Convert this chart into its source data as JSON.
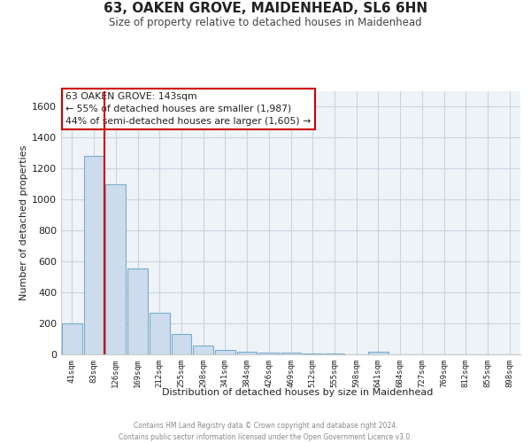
{
  "title": "63, OAKEN GROVE, MAIDENHEAD, SL6 6HN",
  "subtitle": "Size of property relative to detached houses in Maidenhead",
  "xlabel": "Distribution of detached houses by size in Maidenhead",
  "ylabel": "Number of detached properties",
  "bar_color": "#ccdcec",
  "bar_edge_color": "#7aaccc",
  "bins": [
    "41sqm",
    "83sqm",
    "126sqm",
    "169sqm",
    "212sqm",
    "255sqm",
    "298sqm",
    "341sqm",
    "384sqm",
    "426sqm",
    "469sqm",
    "512sqm",
    "555sqm",
    "598sqm",
    "641sqm",
    "684sqm",
    "727sqm",
    "769sqm",
    "812sqm",
    "855sqm",
    "898sqm"
  ],
  "values": [
    200,
    1280,
    1100,
    555,
    270,
    130,
    60,
    30,
    15,
    10,
    10,
    5,
    5,
    0,
    15,
    0,
    0,
    0,
    0,
    0,
    0
  ],
  "ylim": [
    0,
    1700
  ],
  "yticks": [
    0,
    200,
    400,
    600,
    800,
    1000,
    1200,
    1400,
    1600
  ],
  "property_line_x": 2.0,
  "property_line_color": "#cc0000",
  "annotation_text": "63 OAKEN GROVE: 143sqm\n← 55% of detached houses are smaller (1,987)\n44% of semi-detached houses are larger (1,605) →",
  "annotation_box_color": "#ffffff",
  "annotation_box_edge": "#cc0000",
  "footer_line1": "Contains HM Land Registry data © Crown copyright and database right 2024.",
  "footer_line2": "Contains public sector information licensed under the Open Government Licence v3.0.",
  "background_color": "#ffffff",
  "grid_color": "#c8d4e0",
  "plot_bg_color": "#eef3f8"
}
